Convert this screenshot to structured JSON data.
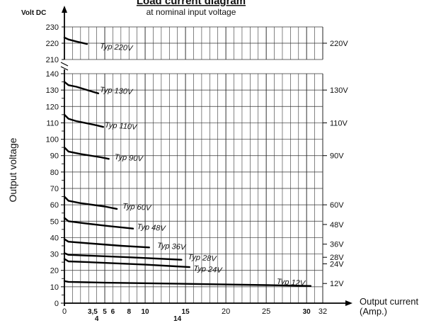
{
  "chart_data": {
    "type": "line",
    "title": "Load current diagram",
    "subtitle": "at nominal input voltage",
    "y_unit": "Volt DC",
    "ylabel": "Output voltage",
    "xlabel": "Output current",
    "xlabel_unit": "(Amp.)",
    "xlim": [
      0,
      32
    ],
    "ylim_upper": [
      210,
      230
    ],
    "ylim_lower": [
      0,
      140
    ],
    "grid": true,
    "x_ticks": [
      "0",
      "3,5",
      "4",
      "5",
      "6",
      "8",
      "10",
      "14",
      "15",
      "20",
      "25",
      "30",
      "32"
    ],
    "y_ticks_upper": [
      "210",
      "220",
      "230"
    ],
    "y_ticks_lower": [
      "0",
      "10",
      "20",
      "30",
      "40",
      "50",
      "60",
      "70",
      "80",
      "90",
      "100",
      "110",
      "120",
      "130",
      "140"
    ],
    "right_labels": [
      {
        "text": "220V",
        "y": 220
      },
      {
        "text": "130V",
        "y": 130
      },
      {
        "text": "110V",
        "y": 110
      },
      {
        "text": "90V",
        "y": 90
      },
      {
        "text": "60V",
        "y": 60
      },
      {
        "text": "48V",
        "y": 48
      },
      {
        "text": "36V",
        "y": 36
      },
      {
        "text": "28V",
        "y": 28
      },
      {
        "text": "24V",
        "y": 24
      },
      {
        "text": "12V",
        "y": 12
      }
    ],
    "series": [
      {
        "name": "Typ 220V",
        "x": [
          0,
          0.5,
          1.5,
          2.8
        ],
        "y": [
          223.5,
          222.3,
          221,
          219.5
        ],
        "label_at": [
          4.4,
          218.5
        ]
      },
      {
        "name": "Typ 130V",
        "x": [
          0,
          0.5,
          1.5,
          3.5,
          4.2
        ],
        "y": [
          135,
          133,
          132,
          129,
          128
        ],
        "label_at": [
          4.4,
          130.5
        ]
      },
      {
        "name": "Typ 110V",
        "x": [
          0,
          0.5,
          1.5,
          4,
          4.8
        ],
        "y": [
          115,
          112.5,
          111,
          108.5,
          107.5
        ],
        "label_at": [
          5,
          109
        ]
      },
      {
        "name": "Typ 90V",
        "x": [
          0,
          0.5,
          2,
          4.5,
          5.5
        ],
        "y": [
          95,
          92.5,
          91,
          89,
          88
        ],
        "label_at": [
          6.2,
          89.5
        ]
      },
      {
        "name": "Typ 60V",
        "x": [
          0,
          0.5,
          2,
          5,
          6.5
        ],
        "y": [
          65,
          62.5,
          61,
          59,
          57.5
        ],
        "label_at": [
          7.2,
          59.5
        ]
      },
      {
        "name": "Typ 48V",
        "x": [
          0,
          0.5,
          2,
          5.5,
          8.5
        ],
        "y": [
          52,
          50,
          49,
          47,
          45.5
        ],
        "label_at": [
          9,
          47
        ]
      },
      {
        "name": "Typ 36V",
        "x": [
          0,
          0.5,
          3,
          7,
          10.5
        ],
        "y": [
          39,
          37.5,
          36.5,
          35,
          34
        ],
        "label_at": [
          11.5,
          35.5
        ]
      },
      {
        "name": "Typ 28V",
        "x": [
          0,
          0.5,
          3,
          8,
          14.5
        ],
        "y": [
          30.5,
          29.5,
          29,
          28,
          26.5
        ],
        "label_at": [
          15.3,
          28.5
        ]
      },
      {
        "name": "Typ 24V",
        "x": [
          0,
          0.5,
          3,
          10,
          15.5
        ],
        "y": [
          27,
          25.5,
          25,
          23.5,
          22
        ],
        "label_at": [
          16,
          21.5
        ]
      },
      {
        "name": "Typ 12V",
        "x": [
          0,
          0.5,
          5,
          15,
          25,
          30.5
        ],
        "y": [
          13.5,
          13,
          12.5,
          11.8,
          11,
          10.5
        ],
        "label_at": [
          26.3,
          13.5
        ]
      }
    ]
  }
}
